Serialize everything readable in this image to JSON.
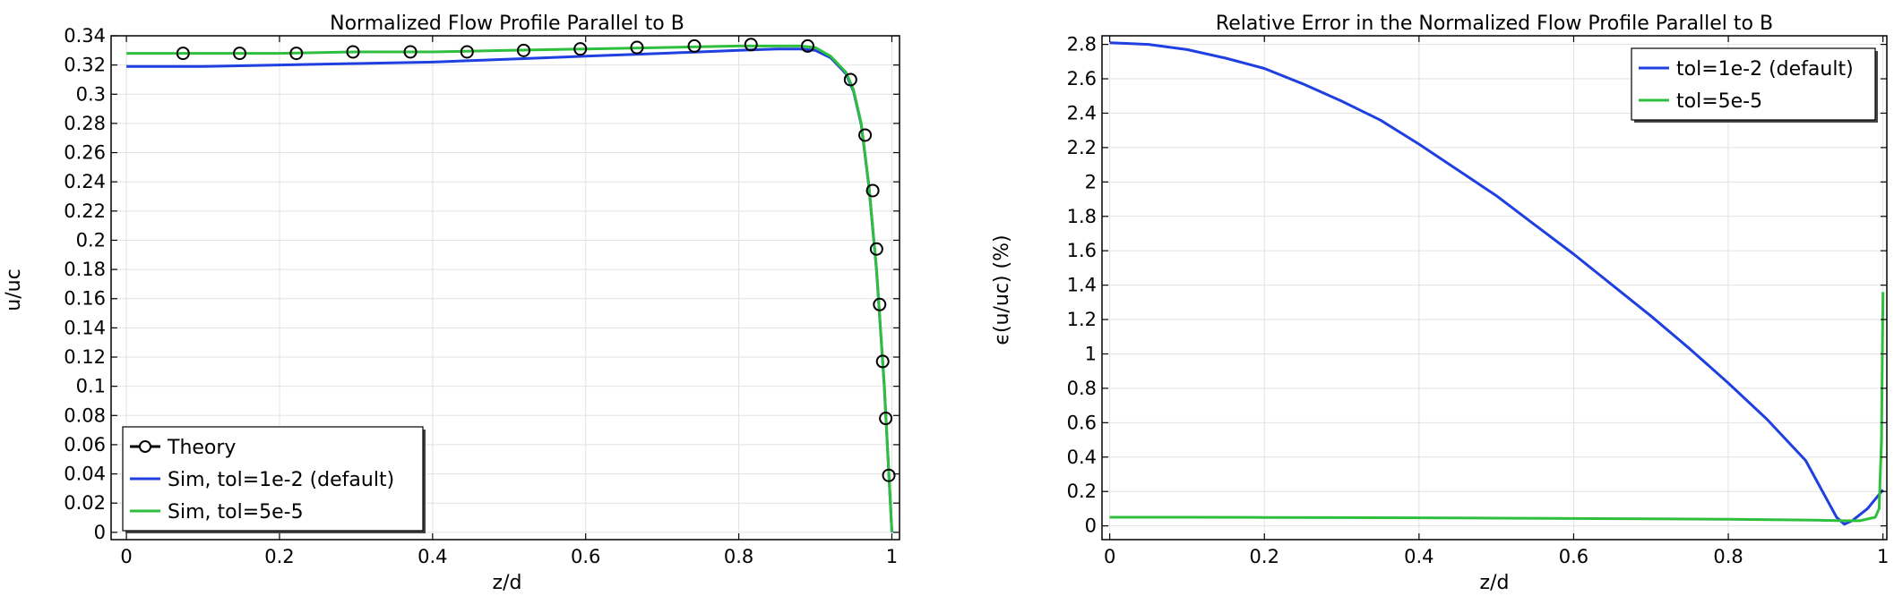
{
  "chart_data": [
    {
      "type": "line",
      "title": "Normalized Flow Profile Parallel to B",
      "xlabel": "z/d",
      "ylabel": "u/uc",
      "xlim": [
        -0.02,
        1.01
      ],
      "ylim": [
        -0.005,
        0.34
      ],
      "xticks": [
        0,
        0.2,
        0.4,
        0.6,
        0.8,
        1
      ],
      "xtick_labels": [
        "0",
        "0.2",
        "0.4",
        "0.6",
        "0.8",
        "1"
      ],
      "yticks": [
        0,
        0.02,
        0.04,
        0.06,
        0.08,
        0.1,
        0.12,
        0.14,
        0.16,
        0.18,
        0.2,
        0.22,
        0.24,
        0.26,
        0.28,
        0.3,
        0.32,
        0.34
      ],
      "ytick_labels": [
        "0",
        "0.02",
        "0.04",
        "0.06",
        "0.08",
        "0.1",
        "0.12",
        "0.14",
        "0.16",
        "0.18",
        "0.2",
        "0.22",
        "0.24",
        "0.26",
        "0.28",
        "0.3",
        "0.32",
        "0.34"
      ],
      "grid": true,
      "legend_position": "bottom-left",
      "series": [
        {
          "name": "Theory",
          "color": "#000000",
          "style": "markers",
          "marker": "circle",
          "x": [
            0.074,
            0.148,
            0.222,
            0.296,
            0.371,
            0.445,
            0.519,
            0.593,
            0.667,
            0.742,
            0.816,
            0.89,
            0.946,
            0.965,
            0.975,
            0.98,
            0.984,
            0.988,
            0.992,
            0.996
          ],
          "y": [
            0.328,
            0.328,
            0.328,
            0.329,
            0.329,
            0.329,
            0.33,
            0.331,
            0.332,
            0.333,
            0.334,
            0.333,
            0.31,
            0.272,
            0.234,
            0.194,
            0.156,
            0.117,
            0.078,
            0.039
          ]
        },
        {
          "name": "Sim, tol=1e-2 (default)",
          "color": "#1f3fe0",
          "style": "line",
          "x": [
            0,
            0.1,
            0.2,
            0.3,
            0.4,
            0.5,
            0.6,
            0.7,
            0.8,
            0.85,
            0.88,
            0.9,
            0.92,
            0.94,
            0.95,
            0.96,
            0.97,
            0.98,
            0.99,
            1.0
          ],
          "y": [
            0.319,
            0.319,
            0.32,
            0.321,
            0.322,
            0.324,
            0.326,
            0.328,
            0.33,
            0.331,
            0.331,
            0.33,
            0.325,
            0.314,
            0.302,
            0.279,
            0.237,
            0.179,
            0.101,
            0.0
          ]
        },
        {
          "name": "Sim, tol=5e-5",
          "color": "#2fbf3f",
          "style": "line",
          "x": [
            0,
            0.1,
            0.2,
            0.3,
            0.4,
            0.5,
            0.6,
            0.7,
            0.8,
            0.85,
            0.88,
            0.9,
            0.92,
            0.94,
            0.95,
            0.96,
            0.97,
            0.98,
            0.99,
            1.0
          ],
          "y": [
            0.328,
            0.328,
            0.328,
            0.329,
            0.329,
            0.33,
            0.331,
            0.332,
            0.333,
            0.333,
            0.333,
            0.332,
            0.326,
            0.315,
            0.303,
            0.28,
            0.238,
            0.18,
            0.102,
            0.0
          ]
        }
      ]
    },
    {
      "type": "line",
      "title": "Relative Error in the Normalized Flow Profile Parallel to B",
      "xlabel": "z/d",
      "ylabel": "ϵ(u/uc) (%)",
      "xlim": [
        -0.01,
        1.005
      ],
      "ylim": [
        -0.08,
        2.85
      ],
      "xticks": [
        0,
        0.2,
        0.4,
        0.6,
        0.8,
        1
      ],
      "xtick_labels": [
        "0",
        "0.2",
        "0.4",
        "0.6",
        "0.8",
        "1"
      ],
      "yticks": [
        0,
        0.2,
        0.4,
        0.6,
        0.8,
        1,
        1.2,
        1.4,
        1.6,
        1.8,
        2,
        2.2,
        2.4,
        2.6,
        2.8
      ],
      "ytick_labels": [
        "0",
        "0.2",
        "0.4",
        "0.6",
        "0.8",
        "1",
        "1.2",
        "1.4",
        "1.6",
        "1.8",
        "2",
        "2.2",
        "2.4",
        "2.6",
        "2.8"
      ],
      "grid": true,
      "legend_position": "top-right",
      "series": [
        {
          "name": "tol=1e-2 (default)",
          "color": "#1f3fe0",
          "style": "line",
          "x": [
            0,
            0.05,
            0.1,
            0.15,
            0.2,
            0.25,
            0.3,
            0.35,
            0.4,
            0.45,
            0.5,
            0.55,
            0.6,
            0.65,
            0.7,
            0.75,
            0.8,
            0.85,
            0.9,
            0.94,
            0.95,
            0.96,
            0.98,
            1.0
          ],
          "y": [
            2.81,
            2.8,
            2.77,
            2.72,
            2.66,
            2.57,
            2.47,
            2.36,
            2.22,
            2.07,
            1.92,
            1.75,
            1.58,
            1.4,
            1.22,
            1.03,
            0.83,
            0.62,
            0.38,
            0.05,
            0.01,
            0.03,
            0.1,
            0.21
          ]
        },
        {
          "name": "tol=5e-5",
          "color": "#2fbf3f",
          "style": "line",
          "x": [
            0,
            0.1,
            0.2,
            0.3,
            0.4,
            0.5,
            0.6,
            0.7,
            0.8,
            0.9,
            0.95,
            0.97,
            0.99,
            0.995,
            0.998,
            1.0
          ],
          "y": [
            0.05,
            0.05,
            0.049,
            0.048,
            0.047,
            0.045,
            0.043,
            0.041,
            0.038,
            0.034,
            0.03,
            0.03,
            0.05,
            0.1,
            0.5,
            1.36
          ]
        }
      ]
    }
  ]
}
